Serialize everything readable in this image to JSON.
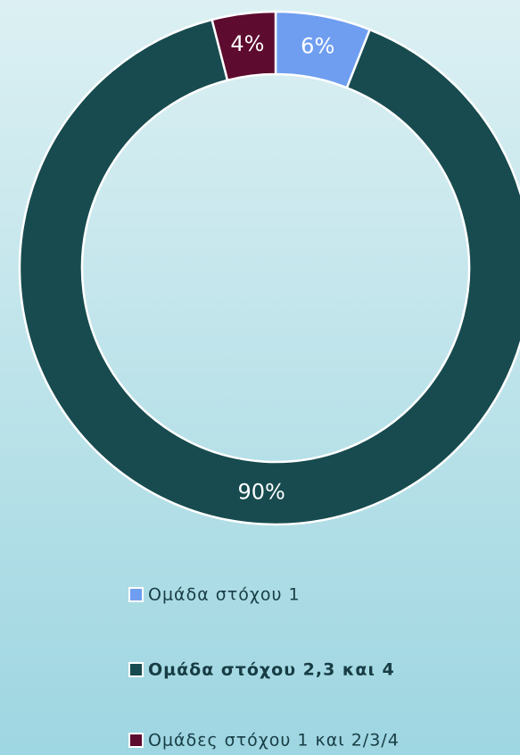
{
  "chart_data": {
    "type": "donut",
    "categories": [
      "Ομάδα στόχου 1",
      "Ομάδα στόχου 2,3 και 4",
      "Ομάδες στόχου 1 και 2/3/4"
    ],
    "values": [
      6,
      90,
      4
    ],
    "value_labels": [
      "6%",
      "90%",
      "4%"
    ],
    "colors": [
      "#6f9ef0",
      "#174b4f",
      "#5d0b2f"
    ],
    "legend": "bottom"
  }
}
